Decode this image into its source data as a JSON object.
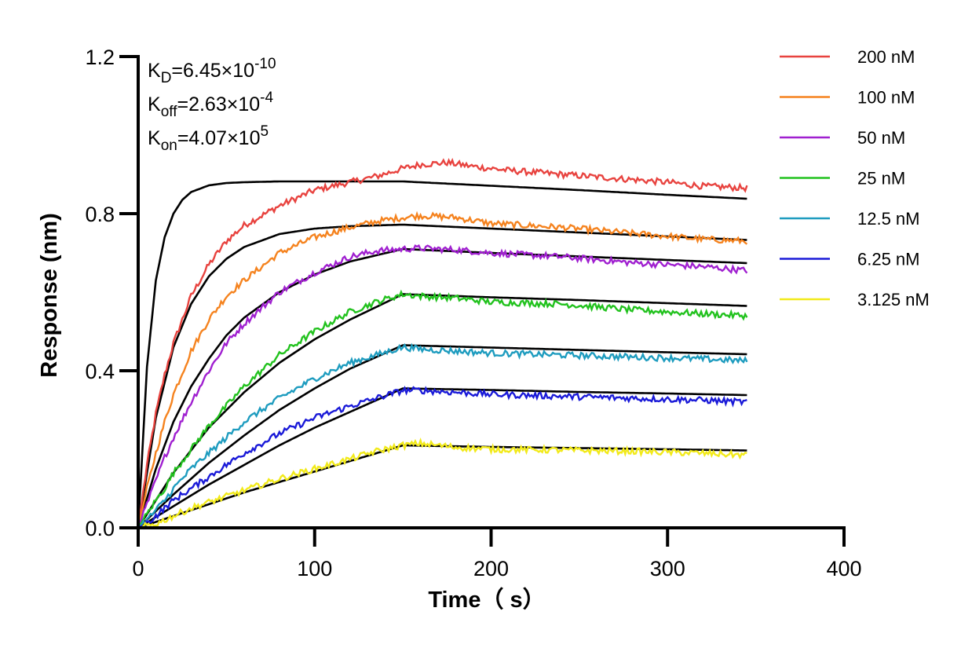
{
  "chart_data": {
    "type": "line",
    "xlabel": "Time（ s）",
    "ylabel": "Response (nm)",
    "xlim": [
      0,
      400
    ],
    "ylim": [
      0,
      1.2
    ],
    "x_ticks": [
      0,
      100,
      200,
      300,
      400
    ],
    "x_tick_labels": [
      "0",
      "100",
      "200",
      "300",
      "400"
    ],
    "y_ticks": [
      0,
      0.4,
      0.8,
      1.2
    ],
    "y_tick_labels": [
      "0.0",
      "0.4",
      "0.8",
      "1.2"
    ],
    "grid": false,
    "legend_position": "top-right",
    "annotations": [
      {
        "symbol": "K",
        "subscript": "D",
        "value": "=6.45×10",
        "exponent": "-10"
      },
      {
        "symbol": "K",
        "subscript": "off",
        "value": "=2.63×10",
        "exponent": "-4"
      },
      {
        "symbol": "K",
        "subscript": "on",
        "value": "=4.07×10",
        "exponent": "5"
      }
    ],
    "fit_color": "#000000",
    "series": [
      {
        "name": "200 nM",
        "color": "#e8433f",
        "x": [
          0,
          5,
          10,
          15,
          20,
          30,
          40,
          50,
          60,
          80,
          100,
          120,
          135,
          150,
          160,
          175,
          190,
          210,
          240,
          270,
          300,
          320,
          345
        ],
        "values": [
          0,
          0.16,
          0.29,
          0.39,
          0.47,
          0.59,
          0.67,
          0.73,
          0.77,
          0.82,
          0.86,
          0.88,
          0.895,
          0.915,
          0.925,
          0.93,
          0.92,
          0.91,
          0.9,
          0.89,
          0.88,
          0.87,
          0.865
        ]
      },
      {
        "name": "100 nM",
        "color": "#f5831f",
        "x": [
          0,
          5,
          10,
          15,
          20,
          30,
          40,
          50,
          60,
          80,
          100,
          120,
          135,
          150,
          160,
          180,
          200,
          240,
          280,
          320,
          345
        ],
        "values": [
          0,
          0.1,
          0.19,
          0.27,
          0.34,
          0.45,
          0.53,
          0.59,
          0.63,
          0.7,
          0.74,
          0.765,
          0.78,
          0.79,
          0.795,
          0.79,
          0.775,
          0.765,
          0.75,
          0.735,
          0.73
        ]
      },
      {
        "name": "50 nM",
        "color": "#a020d0",
        "x": [
          0,
          5,
          10,
          15,
          20,
          30,
          40,
          50,
          60,
          80,
          100,
          120,
          135,
          150,
          160,
          180,
          200,
          240,
          280,
          320,
          345
        ],
        "values": [
          0,
          0.06,
          0.12,
          0.18,
          0.23,
          0.32,
          0.4,
          0.47,
          0.52,
          0.6,
          0.65,
          0.69,
          0.705,
          0.71,
          0.712,
          0.708,
          0.7,
          0.69,
          0.675,
          0.665,
          0.655
        ]
      },
      {
        "name": "25 nM",
        "color": "#22c21e",
        "x": [
          0,
          5,
          10,
          15,
          20,
          30,
          40,
          50,
          60,
          80,
          100,
          120,
          135,
          150,
          160,
          180,
          200,
          240,
          280,
          320,
          345
        ],
        "values": [
          0,
          0.035,
          0.07,
          0.1,
          0.14,
          0.2,
          0.26,
          0.31,
          0.36,
          0.44,
          0.5,
          0.55,
          0.575,
          0.595,
          0.59,
          0.585,
          0.575,
          0.57,
          0.555,
          0.545,
          0.54
        ]
      },
      {
        "name": "12.5 nM",
        "color": "#1e9cbf",
        "x": [
          0,
          5,
          10,
          15,
          20,
          30,
          40,
          50,
          60,
          80,
          100,
          120,
          135,
          150,
          160,
          180,
          200,
          240,
          280,
          320,
          345
        ],
        "values": [
          0,
          0.02,
          0.045,
          0.07,
          0.1,
          0.15,
          0.19,
          0.23,
          0.27,
          0.33,
          0.38,
          0.42,
          0.44,
          0.46,
          0.455,
          0.45,
          0.445,
          0.44,
          0.435,
          0.43,
          0.425
        ]
      },
      {
        "name": "6.25 nM",
        "color": "#1a1ad8",
        "x": [
          0,
          5,
          10,
          15,
          20,
          30,
          40,
          50,
          60,
          80,
          100,
          120,
          135,
          150,
          160,
          180,
          200,
          240,
          280,
          320,
          345
        ],
        "values": [
          0,
          0.012,
          0.03,
          0.05,
          0.07,
          0.1,
          0.13,
          0.16,
          0.19,
          0.24,
          0.28,
          0.31,
          0.33,
          0.35,
          0.35,
          0.345,
          0.34,
          0.335,
          0.33,
          0.325,
          0.32
        ]
      },
      {
        "name": "3.125 nM",
        "color": "#f2ea1a",
        "x": [
          0,
          5,
          10,
          15,
          20,
          30,
          40,
          50,
          60,
          80,
          100,
          120,
          135,
          150,
          160,
          180,
          200,
          240,
          280,
          320,
          345
        ],
        "values": [
          0,
          0.005,
          0.01,
          0.02,
          0.03,
          0.05,
          0.065,
          0.08,
          0.095,
          0.125,
          0.15,
          0.175,
          0.195,
          0.21,
          0.215,
          0.205,
          0.2,
          0.198,
          0.195,
          0.19,
          0.185
        ]
      }
    ],
    "fits": [
      {
        "for": "200 nM",
        "x": [
          0,
          5,
          10,
          15,
          20,
          25,
          30,
          40,
          50,
          60,
          80,
          100,
          150,
          200,
          250,
          300,
          345
        ],
        "values": [
          0,
          0.41,
          0.63,
          0.74,
          0.8,
          0.835,
          0.855,
          0.872,
          0.878,
          0.88,
          0.882,
          0.882,
          0.882,
          0.871,
          0.86,
          0.848,
          0.838
        ]
      },
      {
        "for": "100 nM",
        "x": [
          0,
          10,
          20,
          30,
          40,
          50,
          60,
          80,
          100,
          120,
          150,
          200,
          250,
          300,
          345
        ],
        "values": [
          0,
          0.28,
          0.46,
          0.57,
          0.64,
          0.685,
          0.715,
          0.748,
          0.762,
          0.768,
          0.772,
          0.762,
          0.752,
          0.742,
          0.733
        ]
      },
      {
        "for": "50 nM",
        "x": [
          0,
          10,
          20,
          30,
          40,
          50,
          60,
          80,
          100,
          120,
          150,
          200,
          250,
          300,
          345
        ],
        "values": [
          0,
          0.15,
          0.27,
          0.36,
          0.43,
          0.49,
          0.535,
          0.6,
          0.645,
          0.678,
          0.71,
          0.7,
          0.691,
          0.682,
          0.674
        ]
      },
      {
        "for": "25 nM",
        "x": [
          0,
          20,
          40,
          60,
          80,
          100,
          120,
          150,
          200,
          250,
          300,
          345
        ],
        "values": [
          0,
          0.14,
          0.255,
          0.345,
          0.42,
          0.48,
          0.53,
          0.595,
          0.587,
          0.58,
          0.572,
          0.565
        ]
      },
      {
        "for": "12.5 nM",
        "x": [
          0,
          20,
          40,
          60,
          80,
          100,
          120,
          150,
          200,
          250,
          300,
          345
        ],
        "values": [
          0,
          0.085,
          0.165,
          0.235,
          0.3,
          0.355,
          0.405,
          0.465,
          0.459,
          0.453,
          0.447,
          0.442
        ]
      },
      {
        "for": "6.25 nM",
        "x": [
          0,
          20,
          40,
          60,
          80,
          100,
          120,
          150,
          200,
          250,
          300,
          345
        ],
        "values": [
          0,
          0.055,
          0.11,
          0.16,
          0.21,
          0.255,
          0.295,
          0.355,
          0.351,
          0.346,
          0.342,
          0.338
        ]
      },
      {
        "for": "3.125 nM",
        "x": [
          0,
          30,
          60,
          90,
          120,
          150,
          200,
          250,
          300,
          345
        ],
        "values": [
          0,
          0.045,
          0.09,
          0.13,
          0.17,
          0.21,
          0.206,
          0.203,
          0.2,
          0.197
        ]
      }
    ]
  }
}
